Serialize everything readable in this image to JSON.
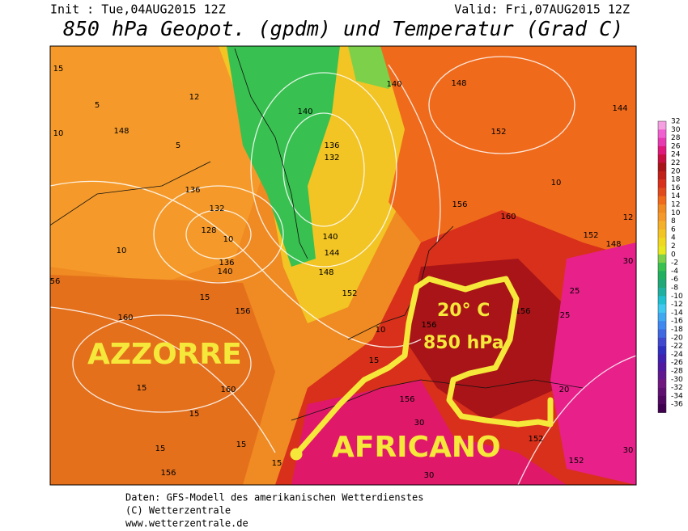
{
  "header": {
    "init": "Init : Tue,04AUG2015 12Z",
    "valid": "Valid: Fri,07AUG2015 12Z",
    "title": "850 hPa Geopot. (gpdm) und Temperatur (Grad C)"
  },
  "annotations": [
    "AZZORRE",
    "AFRICANO",
    "20° C",
    "850 hPa"
  ],
  "contour_labels": [
    "15",
    "5",
    "10",
    "148",
    "12",
    "5",
    "136",
    "132",
    "128",
    "10",
    "136",
    "140",
    "10",
    "56",
    "15",
    "156",
    "160",
    "15",
    "160",
    "15",
    "15",
    "156",
    "15",
    "15",
    "140",
    "136",
    "132",
    "140",
    "144",
    "148",
    "152",
    "10",
    "15",
    "156",
    "30",
    "30",
    "156",
    "140",
    "148",
    "152",
    "156",
    "160",
    "10",
    "12",
    "144",
    "152",
    "148",
    "30",
    "25",
    "25",
    "20",
    "152",
    "152",
    "156",
    "30"
  ],
  "colorbar": {
    "levels": [
      32,
      30,
      28,
      26,
      24,
      22,
      20,
      18,
      16,
      14,
      12,
      10,
      8,
      6,
      4,
      2,
      0,
      -2,
      -4,
      -6,
      -8,
      -10,
      -12,
      -14,
      -16,
      -18,
      -20,
      -22,
      -24,
      -26,
      -28,
      -30,
      -32,
      -34,
      -36
    ],
    "colors": [
      "#f5a0e0",
      "#f060d0",
      "#e83ab0",
      "#e0187a",
      "#c81040",
      "#a81418",
      "#c02018",
      "#d8301a",
      "#e04a1c",
      "#f06a1c",
      "#f08a22",
      "#f59a2a",
      "#f5b02a",
      "#f2c424",
      "#f0d820",
      "#e8e820",
      "#7cd04a",
      "#38c050",
      "#20b060",
      "#20a878",
      "#20b0a0",
      "#20c0d0",
      "#40c8f0",
      "#40a8f0",
      "#4088f0",
      "#4068e0",
      "#4048d0",
      "#3030c0",
      "#4020b0",
      "#5018a0",
      "#601890",
      "#701880",
      "#601070",
      "#500860",
      "#400050"
    ]
  },
  "footer": [
    "Daten: GFS-Modell des amerikanischen Wetterdienstes",
    "(C) Wetterzentrale",
    "www.wetterzentrale.de"
  ]
}
